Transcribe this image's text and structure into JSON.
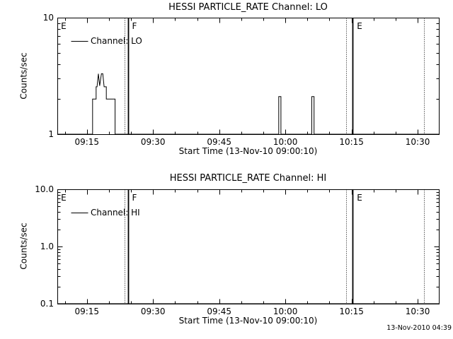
{
  "page": {
    "background": "#ffffff",
    "foreground": "#000000"
  },
  "footer": {
    "timestamp": "13-Nov-2010 04:39"
  },
  "chart_data": [
    {
      "type": "line",
      "title": "HESSI PARTICLE_RATE Channel: LO",
      "xlabel": "Start Time (13-Nov-10 09:00:10)",
      "ylabel": "Counts/sec",
      "legend_label": "Channel: LO",
      "legend_position": "top-left",
      "grid": false,
      "x_unit": "minutes after 09:00",
      "x_range": [
        8.3,
        94.8
      ],
      "x_major_ticks": [
        {
          "t": 15,
          "label": "09:15"
        },
        {
          "t": 30,
          "label": "09:30"
        },
        {
          "t": 45,
          "label": "09:45"
        },
        {
          "t": 60,
          "label": "10:00"
        },
        {
          "t": 75,
          "label": "10:15"
        },
        {
          "t": 90,
          "label": "10:30"
        }
      ],
      "x_minor_step_min": 5,
      "y_scale": "log",
      "y_range": [
        1,
        10
      ],
      "y_major_ticks": [
        {
          "v": 1,
          "label": "1"
        },
        {
          "v": 10,
          "label": "10"
        }
      ],
      "series": [
        {
          "name": "Channel: LO",
          "points": [
            [
              8.3,
              1
            ],
            [
              16.3,
              1
            ],
            [
              16.3,
              2.0
            ],
            [
              17.1,
              2.0
            ],
            [
              17.1,
              2.55
            ],
            [
              17.3,
              2.55
            ],
            [
              17.6,
              3.3
            ],
            [
              17.9,
              2.6
            ],
            [
              18.3,
              3.3
            ],
            [
              18.6,
              3.3
            ],
            [
              18.9,
              2.55
            ],
            [
              19.4,
              2.55
            ],
            [
              19.4,
              2.0
            ],
            [
              21.4,
              2.0
            ],
            [
              21.4,
              1
            ],
            [
              58.5,
              1
            ],
            [
              58.5,
              2.1
            ],
            [
              59.0,
              2.1
            ],
            [
              59.0,
              1
            ],
            [
              66.0,
              1
            ],
            [
              66.0,
              2.1
            ],
            [
              66.5,
              2.1
            ],
            [
              66.5,
              1
            ],
            [
              94.8,
              1
            ]
          ]
        }
      ],
      "event_markers": [
        {
          "label": "E",
          "label_t": 8.8,
          "lines": []
        },
        {
          "label": "F",
          "label_t": 24.9,
          "lines": [
            {
              "t": 23.5,
              "style": "dotted"
            },
            {
              "t": 24.4,
              "style": "solid"
            }
          ]
        },
        {
          "label": "E",
          "label_t": 75.9,
          "lines": [
            {
              "t": 73.8,
              "style": "dotted"
            },
            {
              "t": 75.2,
              "style": "solid"
            }
          ]
        },
        {
          "label": "",
          "label_t": 91.5,
          "lines": [
            {
              "t": 91.5,
              "style": "dotted"
            }
          ]
        }
      ]
    },
    {
      "type": "line",
      "title": "HESSI PARTICLE_RATE Channel: HI",
      "xlabel": "Start Time (13-Nov-10 09:00:10)",
      "ylabel": "Counts/sec",
      "legend_label": "Channel: HI",
      "legend_position": "top-left",
      "grid": false,
      "x_unit": "minutes after 09:00",
      "x_range": [
        8.3,
        94.8
      ],
      "x_major_ticks": [
        {
          "t": 15,
          "label": "09:15"
        },
        {
          "t": 30,
          "label": "09:30"
        },
        {
          "t": 45,
          "label": "09:45"
        },
        {
          "t": 60,
          "label": "10:00"
        },
        {
          "t": 75,
          "label": "10:15"
        },
        {
          "t": 90,
          "label": "10:30"
        }
      ],
      "x_minor_step_min": 5,
      "y_scale": "log",
      "y_range": [
        0.1,
        10
      ],
      "y_major_ticks": [
        {
          "v": 0.1,
          "label": "0.1"
        },
        {
          "v": 1,
          "label": "1.0"
        },
        {
          "v": 10,
          "label": "10.0"
        }
      ],
      "series": [
        {
          "name": "Channel: HI",
          "points": [
            [
              8.3,
              0.1
            ],
            [
              94.8,
              0.1
            ]
          ]
        }
      ],
      "event_markers": [
        {
          "label": "E",
          "label_t": 8.8,
          "lines": []
        },
        {
          "label": "F",
          "label_t": 24.9,
          "lines": [
            {
              "t": 23.5,
              "style": "dotted"
            },
            {
              "t": 24.4,
              "style": "solid"
            }
          ]
        },
        {
          "label": "E",
          "label_t": 75.9,
          "lines": [
            {
              "t": 73.8,
              "style": "dotted"
            },
            {
              "t": 75.2,
              "style": "solid"
            }
          ]
        },
        {
          "label": "",
          "label_t": 91.5,
          "lines": [
            {
              "t": 91.5,
              "style": "dotted"
            }
          ]
        }
      ]
    }
  ]
}
